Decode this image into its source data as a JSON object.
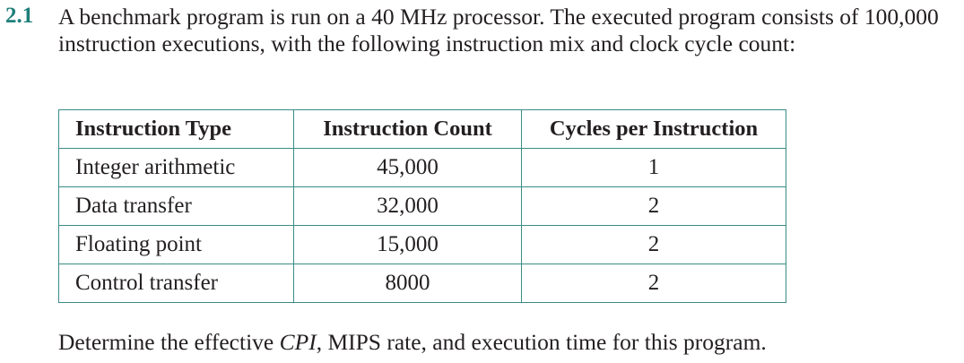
{
  "problem": {
    "number": "2.1",
    "text": "A benchmark program is run on a 40 MHz processor. The executed program consists of 100,000 instruction executions, with the following instruction mix and clock cycle count:"
  },
  "table": {
    "headers": [
      "Instruction Type",
      "Instruction Count",
      "Cycles per Instruction"
    ],
    "rows": [
      {
        "type": "Integer arithmetic",
        "count": "45,000",
        "cycles": "1"
      },
      {
        "type": "Data transfer",
        "count": "32,000",
        "cycles": "2"
      },
      {
        "type": "Floating point",
        "count": "15,000",
        "cycles": "2"
      },
      {
        "type": "Control transfer",
        "count": "8000",
        "cycles": "2"
      }
    ]
  },
  "question": {
    "prefix": "Determine the effective ",
    "emphasis": "CPI",
    "suffix": ", MIPS rate, and execution time for this program."
  },
  "colors": {
    "accent": "#1f7f7a",
    "table_border": "#3a8c86",
    "text": "#231f20"
  }
}
